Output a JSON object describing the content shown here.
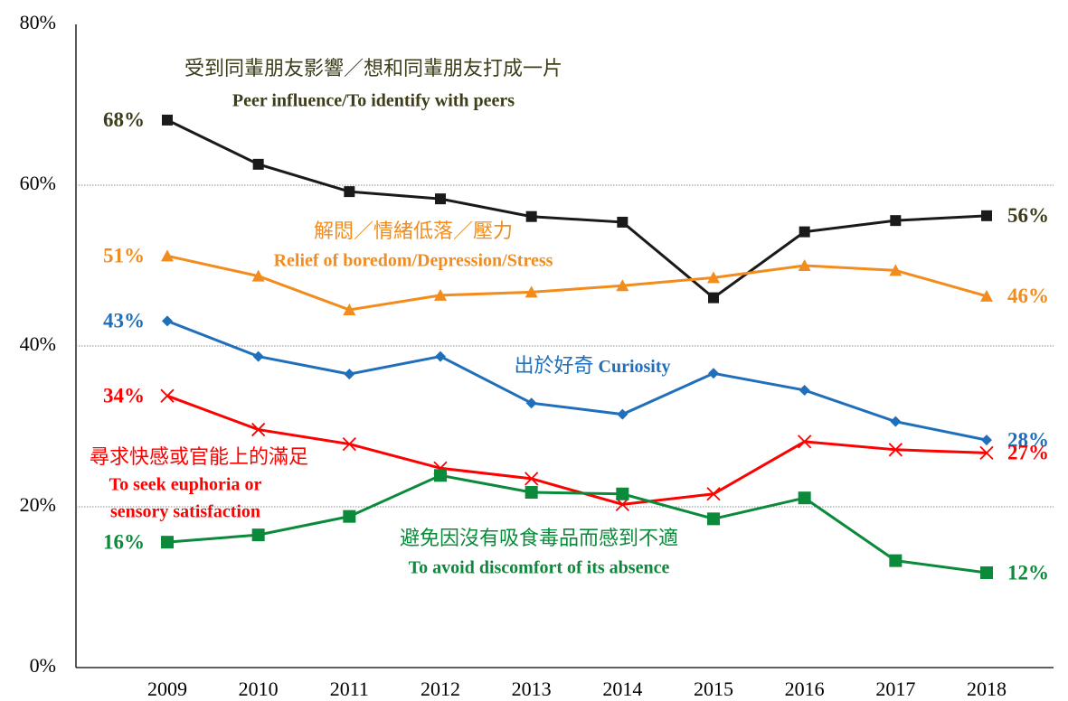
{
  "chart_data": {
    "type": "line",
    "categories": [
      "2009",
      "2010",
      "2011",
      "2012",
      "2013",
      "2014",
      "2015",
      "2016",
      "2017",
      "2018"
    ],
    "ylim": [
      0,
      80
    ],
    "yticks": [
      {
        "value": 0,
        "label": "0%"
      },
      {
        "value": 20,
        "label": "20%"
      },
      {
        "value": 40,
        "label": "40%"
      },
      {
        "value": 60,
        "label": "60%"
      },
      {
        "value": 80,
        "label": "80%"
      }
    ],
    "grid": true,
    "series": [
      {
        "name": "受到同輩朋友影響／想和同輩朋友打成一片",
        "name_en": [
          "Peer influence/To identify with peers"
        ],
        "color": "#1a1a1a",
        "label_color": "#3d3d1a",
        "marker": "square",
        "values": [
          68.1,
          62.6,
          59.2,
          58.3,
          56.1,
          55.4,
          46.0,
          54.2,
          55.6,
          56.2
        ],
        "value_labels": [
          "68%",
          null,
          null,
          null,
          null,
          null,
          null,
          null,
          null,
          "56%"
        ]
      },
      {
        "name": "解悶／情緒低落／壓力",
        "name_en": [
          "Relief of boredom/Depression/Stress"
        ],
        "color": "#f28c1c",
        "label_color": "#f28c1c",
        "marker": "triangle",
        "values": [
          51.2,
          48.7,
          44.5,
          46.3,
          46.7,
          47.5,
          48.5,
          50.0,
          49.4,
          46.2
        ],
        "value_labels": [
          "51%",
          null,
          null,
          null,
          null,
          null,
          null,
          null,
          null,
          "46%"
        ]
      },
      {
        "name": "出於好奇",
        "name_en": [
          "Curiosity"
        ],
        "color": "#1f6fba",
        "label_color": "#1f6fba",
        "marker": "diamond",
        "values": [
          43.1,
          38.7,
          36.5,
          38.7,
          32.9,
          31.5,
          36.6,
          34.5,
          30.6,
          28.3
        ],
        "value_labels": [
          "43%",
          null,
          null,
          null,
          null,
          null,
          null,
          null,
          null,
          "28%"
        ]
      },
      {
        "name": "尋求快感或官能上的滿足",
        "name_en": [
          "To seek euphoria or",
          "sensory satisfaction"
        ],
        "color": "#ff0000",
        "label_color": "#ff0000",
        "marker": "x",
        "values": [
          33.8,
          29.6,
          27.8,
          24.8,
          23.5,
          20.3,
          21.6,
          28.1,
          27.1,
          26.7
        ],
        "value_labels": [
          "34%",
          null,
          null,
          null,
          null,
          null,
          null,
          null,
          null,
          "27%"
        ]
      },
      {
        "name": "避免因沒有吸食毒品而感到不適",
        "name_en": [
          "To avoid discomfort of its absence"
        ],
        "color": "#0a8a3a",
        "label_color": "#0a8a3a",
        "marker": "bigsquare",
        "values": [
          15.6,
          16.5,
          18.8,
          23.9,
          21.8,
          21.6,
          18.5,
          21.1,
          13.3,
          11.8
        ],
        "value_labels": [
          "16%",
          null,
          null,
          null,
          null,
          null,
          null,
          null,
          null,
          "12%"
        ]
      }
    ]
  }
}
